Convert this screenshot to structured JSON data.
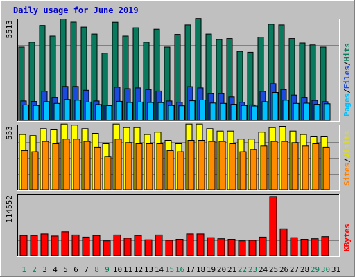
{
  "chart_data": {
    "type": "bar",
    "title": "Daily usage for June 2019",
    "days": [
      "1",
      "2",
      "3",
      "4",
      "5",
      "6",
      "7",
      "8",
      "9",
      "10",
      "11",
      "12",
      "13",
      "14",
      "15",
      "16",
      "17",
      "18",
      "19",
      "20",
      "21",
      "22",
      "23",
      "24",
      "25",
      "26",
      "27",
      "28",
      "29",
      "30",
      "31"
    ],
    "weekend_days": [
      "1",
      "2",
      "8",
      "9",
      "15",
      "16",
      "22",
      "23",
      "29",
      "30"
    ],
    "panels": [
      {
        "id": "hits",
        "max_label": "5513",
        "ylim": [
          0,
          5513
        ],
        "legend": [
          {
            "name": "Pages",
            "color": "#00c0ff"
          },
          {
            "name": "/",
            "color": "#000000"
          },
          {
            "name": "Files",
            "color": "#1a4bdc"
          },
          {
            "name": "/",
            "color": "#000000"
          },
          {
            "name": "Hits",
            "color": "#0a7a5e"
          }
        ],
        "series": [
          {
            "name": "Hits",
            "color": "#0a7a5e",
            "values": [
              4030,
              4300,
              5220,
              4640,
              5570,
              5400,
              5130,
              4750,
              3700,
              5390,
              4640,
              5090,
              4300,
              5010,
              4030,
              4730,
              5250,
              5600,
              4750,
              4450,
              4500,
              3800,
              3750,
              4580,
              5290,
              5250,
              4500,
              4260,
              4150,
              4030,
              null
            ]
          },
          {
            "name": "Files",
            "color": "#1a4bdc",
            "values": [
              1070,
              1040,
              1610,
              1270,
              1870,
              1870,
              1660,
              1070,
              850,
              1830,
              1750,
              1790,
              1700,
              1620,
              1070,
              1000,
              1860,
              1790,
              1470,
              1470,
              1300,
              1000,
              860,
              1600,
              2020,
              1700,
              1400,
              1270,
              1100,
              1030,
              null
            ]
          },
          {
            "name": "Pages",
            "color": "#00c0ff",
            "values": [
              860,
              830,
              1030,
              940,
              1150,
              1110,
              1010,
              880,
              820,
              1050,
              990,
              1010,
              990,
              980,
              830,
              810,
              1080,
              1120,
              960,
              940,
              890,
              830,
              800,
              1030,
              1540,
              1110,
              940,
              950,
              890,
              920,
              null
            ]
          }
        ]
      },
      {
        "id": "visits",
        "max_label": "553",
        "ylim": [
          0,
          553
        ],
        "legend": [
          {
            "name": "Sites",
            "color": "#ff8000"
          },
          {
            "name": "/",
            "color": "#000000"
          },
          {
            "name": "Visits",
            "color": "#e0e000"
          }
        ],
        "series": [
          {
            "name": "Visits",
            "color": "#ffff00",
            "values": [
              480,
              470,
              530,
              520,
              570,
              560,
              530,
              490,
              400,
              570,
              540,
              540,
              480,
              500,
              430,
              400,
              570,
              570,
              530,
              510,
              510,
              440,
              440,
              500,
              540,
              550,
              510,
              480,
              460,
              460,
              null
            ]
          },
          {
            "name": "Sites",
            "color": "#ff8c00",
            "values": [
              340,
              330,
              420,
              400,
              440,
              440,
              420,
              370,
              290,
              440,
              410,
              400,
              400,
              400,
              340,
              330,
              430,
              430,
              420,
              420,
              400,
              330,
              350,
              380,
              420,
              420,
              410,
              380,
              400,
              370,
              null
            ]
          }
        ]
      },
      {
        "id": "kbytes",
        "max_label": "114552",
        "ylim": [
          0,
          114552
        ],
        "legend": [
          {
            "name": "KBytes",
            "color": "#ff0000"
          }
        ],
        "series": [
          {
            "name": "KBytes",
            "color": "#ff0000",
            "values": [
              38000,
              38000,
              41000,
              37000,
              45000,
              39000,
              35000,
              38000,
              28000,
              39000,
              33000,
              38000,
              30000,
              39000,
              29000,
              31000,
              41000,
              41000,
              34000,
              32000,
              31000,
              28000,
              29000,
              35000,
              112000,
              51000,
              34000,
              31000,
              32000,
              36000,
              null
            ]
          }
        ]
      }
    ]
  }
}
